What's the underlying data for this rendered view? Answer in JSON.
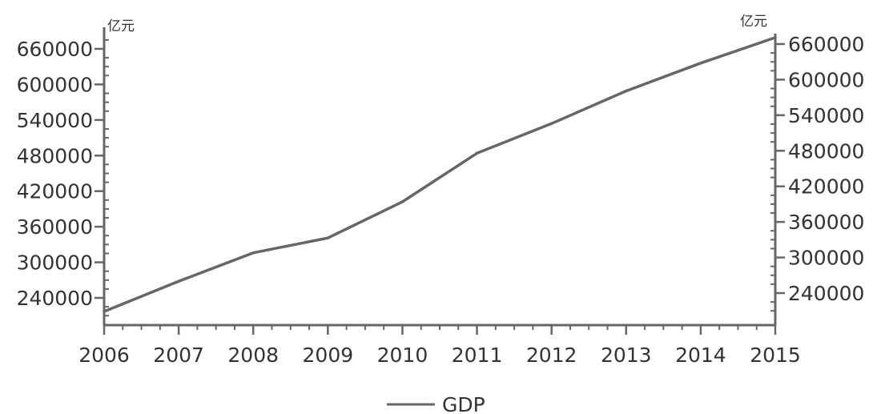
{
  "chart_data": {
    "type": "line",
    "x": [
      "2006",
      "2007",
      "2008",
      "2009",
      "2010",
      "2011",
      "2012",
      "2013",
      "2014",
      "2015"
    ],
    "series": [
      {
        "name": "GDP",
        "values": [
          217000,
          268000,
          316000,
          341000,
          402000,
          484000,
          534000,
          589000,
          636000,
          679000
        ]
      }
    ],
    "y_unit_left": "亿元",
    "y_unit_right": "亿元",
    "left_ticks": [
      240000,
      300000,
      360000,
      420000,
      480000,
      540000,
      600000,
      660000
    ],
    "right_ticks": [
      240000,
      300000,
      360000,
      420000,
      480000,
      540000,
      600000,
      660000
    ],
    "ylim": [
      195000,
      687000
    ],
    "grid": false,
    "legend_position": "bottom-center",
    "line_color": "#666666"
  }
}
